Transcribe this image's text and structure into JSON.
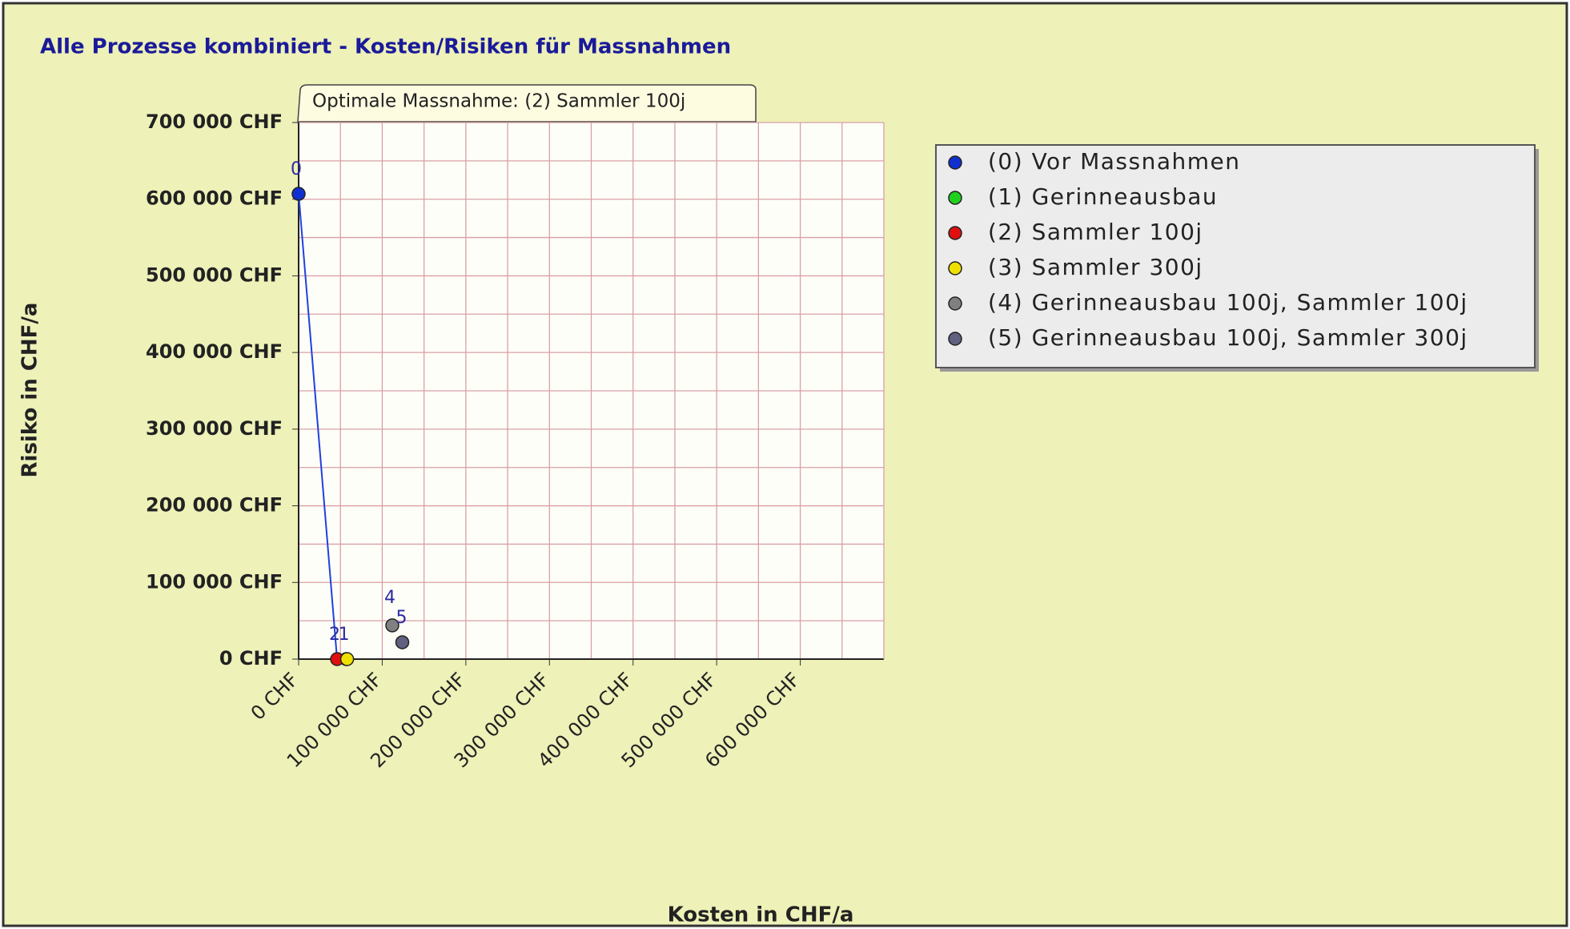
{
  "chart_data": {
    "type": "scatter",
    "title": "Alle Prozesse kombiniert - Kosten/Risiken für Massnahmen",
    "x_label": "Kosten in CHF/a",
    "y_label": "Risiko in CHF/a",
    "annotation": "Optimale Massnahme: (2) Sammler 100j",
    "xlim": [
      0,
      700000
    ],
    "ylim": [
      0,
      700000
    ],
    "xticks": [
      {
        "value": 0,
        "label": "0 CHF"
      },
      {
        "value": 100000,
        "label": "100 000 CHF"
      },
      {
        "value": 200000,
        "label": "200 000 CHF"
      },
      {
        "value": 300000,
        "label": "300 000 CHF"
      },
      {
        "value": 400000,
        "label": "400 000 CHF"
      },
      {
        "value": 500000,
        "label": "500 000 CHF"
      },
      {
        "value": 600000,
        "label": "600 000 CHF"
      }
    ],
    "yticks": [
      {
        "value": 0,
        "label": "0 CHF"
      },
      {
        "value": 100000,
        "label": "100 000 CHF"
      },
      {
        "value": 200000,
        "label": "200 000 CHF"
      },
      {
        "value": 300000,
        "label": "300 000 CHF"
      },
      {
        "value": 400000,
        "label": "400 000 CHF"
      },
      {
        "value": 500000,
        "label": "500 000 CHF"
      },
      {
        "value": 600000,
        "label": "600 000 CHF"
      },
      {
        "value": 700000,
        "label": "700 000 CHF"
      }
    ],
    "xminor": [
      50000,
      150000,
      250000,
      350000,
      450000,
      550000,
      650000
    ],
    "yminor": [
      50000,
      150000,
      250000,
      350000,
      450000,
      550000,
      650000
    ],
    "grid": true,
    "grid_color": "#d9a0a6",
    "series": [
      {
        "name": "(0) Vor Massnahmen",
        "color": "#1030d0",
        "x": [
          0
        ],
        "values": [
          607000
        ],
        "point_labels": [
          "0"
        ]
      },
      {
        "name": "(1) Gerinneausbau",
        "color": "#20d020",
        "x": [
          57000
        ],
        "values": [
          0
        ],
        "point_labels": [
          "1"
        ]
      },
      {
        "name": "(2) Sammler 100j",
        "color": "#e01010",
        "x": [
          46000
        ],
        "values": [
          0
        ],
        "point_labels": [
          "2"
        ]
      },
      {
        "name": "(3) Sammler 300j",
        "color": "#f0e000",
        "x": [
          58000
        ],
        "values": [
          0
        ],
        "point_labels": [
          null
        ]
      },
      {
        "name": "(4) Gerinneausbau 100j, Sammler 100j",
        "color": "#808080",
        "x": [
          112000
        ],
        "values": [
          44000
        ],
        "point_labels": [
          "4"
        ]
      },
      {
        "name": "(5) Gerinneausbau 100j, Sammler 300j",
        "color": "#606080",
        "x": [
          124000
        ],
        "values": [
          22000
        ],
        "point_labels": [
          "5"
        ]
      }
    ]
  }
}
